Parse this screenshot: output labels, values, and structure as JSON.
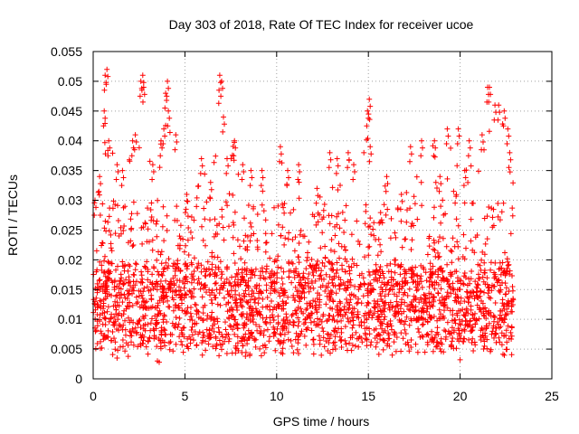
{
  "chart_data": {
    "type": "scatter",
    "title": "Day 303 of 2018, Rate Of TEC Index for receiver ucoe",
    "xlabel": "GPS time / hours",
    "ylabel": "ROTI / TECUs",
    "xlim": [
      0,
      25
    ],
    "ylim": [
      0,
      0.055
    ],
    "x_ticks": [
      0,
      5,
      10,
      15,
      20,
      25
    ],
    "x_tick_labels": [
      "0",
      "5",
      "10",
      "15",
      "20",
      "25"
    ],
    "y_ticks": [
      0,
      0.005,
      0.01,
      0.015,
      0.02,
      0.025,
      0.03,
      0.035,
      0.04,
      0.045,
      0.05,
      0.055
    ],
    "y_tick_labels": [
      "0",
      "0.005",
      "0.01",
      "0.015",
      "0.02",
      "0.025",
      "0.03",
      "0.035",
      "0.04",
      "0.045",
      "0.05",
      "0.055"
    ],
    "grid": true,
    "marker": "+",
    "color": "#ff0000",
    "data_range": [
      0,
      22.9
    ],
    "series": [
      {
        "name": "ROTI",
        "description": "dense scatter of ROTI samples, bulk 0.005–0.02 TECU, frequent peaks up to ~0.052",
        "peaks": [
          [
            0.1,
            0.03
          ],
          [
            0.35,
            0.034
          ],
          [
            0.65,
            0.051
          ],
          [
            0.75,
            0.052
          ],
          [
            0.6,
            0.045
          ],
          [
            0.85,
            0.04
          ],
          [
            1.3,
            0.036
          ],
          [
            1.6,
            0.035
          ],
          [
            2.15,
            0.04
          ],
          [
            2.3,
            0.041
          ],
          [
            2.6,
            0.05
          ],
          [
            2.7,
            0.051
          ],
          [
            2.75,
            0.049
          ],
          [
            3.25,
            0.036
          ],
          [
            3.7,
            0.04
          ],
          [
            3.85,
            0.042
          ],
          [
            3.95,
            0.048
          ],
          [
            4.05,
            0.05
          ],
          [
            4.1,
            0.045
          ],
          [
            4.5,
            0.041
          ],
          [
            5.1,
            0.031
          ],
          [
            5.9,
            0.037
          ],
          [
            6.4,
            0.033
          ],
          [
            6.9,
            0.051
          ],
          [
            7.0,
            0.05
          ],
          [
            7.1,
            0.044
          ],
          [
            7.3,
            0.037
          ],
          [
            7.7,
            0.04
          ],
          [
            8.15,
            0.036
          ],
          [
            8.6,
            0.035
          ],
          [
            9.2,
            0.035
          ],
          [
            10.2,
            0.039
          ],
          [
            10.6,
            0.035
          ],
          [
            11.2,
            0.036
          ],
          [
            12.2,
            0.032
          ],
          [
            12.9,
            0.038
          ],
          [
            13.3,
            0.037
          ],
          [
            13.9,
            0.038
          ],
          [
            14.2,
            0.036
          ],
          [
            14.95,
            0.045
          ],
          [
            15.05,
            0.047
          ],
          [
            15.1,
            0.039
          ],
          [
            16.0,
            0.034
          ],
          [
            16.8,
            0.031
          ],
          [
            17.3,
            0.039
          ],
          [
            17.9,
            0.04
          ],
          [
            18.6,
            0.04
          ],
          [
            18.9,
            0.034
          ],
          [
            19.3,
            0.042
          ],
          [
            19.9,
            0.042
          ],
          [
            20.25,
            0.035
          ],
          [
            20.5,
            0.04
          ],
          [
            21.2,
            0.041
          ],
          [
            21.5,
            0.049
          ],
          [
            21.6,
            0.049
          ],
          [
            21.9,
            0.046
          ],
          [
            22.1,
            0.046
          ],
          [
            22.4,
            0.045
          ],
          [
            22.6,
            0.042
          ],
          [
            22.7,
            0.038
          ]
        ]
      }
    ]
  }
}
